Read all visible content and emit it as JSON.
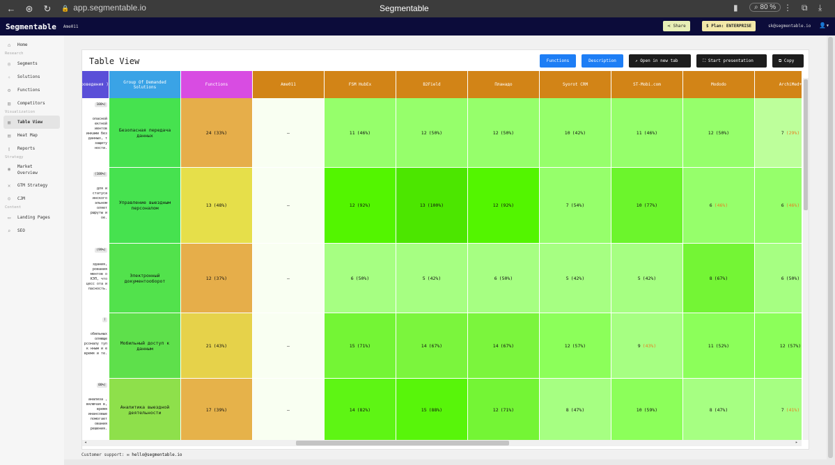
{
  "browser": {
    "url": "app.segmentable.io",
    "title": "Segmentable",
    "zoom": "80 %"
  },
  "header": {
    "brand": "Segmentable",
    "project": "Ame011",
    "share": "Share",
    "plan": "Plan: ENTERPRISE",
    "email": "sk@segmentable.io"
  },
  "sidebar": {
    "home": "Home",
    "sections": {
      "research": "Research",
      "visualization": "Visualization",
      "strategy": "Strategy",
      "content": "Content"
    },
    "research": [
      "Segments",
      "Solutions",
      "Functions",
      "Competitors"
    ],
    "visualization": [
      "Table View",
      "Heat Map",
      "Reports"
    ],
    "strategy": [
      "Market Overview",
      "GTM Strategy",
      "CJM"
    ],
    "content": [
      "Landing Pages",
      "SEO"
    ]
  },
  "card": {
    "title": "Table View",
    "buttons": {
      "functions": "Functions",
      "description": "Description",
      "open": "Open in new tab",
      "present": "Start presentation",
      "copy": "Copy"
    }
  },
  "table": {
    "headers": [
      "проведения )",
      "Group Of Demanded Solutions",
      "Functions",
      "Ame011",
      "FSM HubEx",
      "B2Field",
      "Планадо",
      "Syorot CRM",
      "ST-Mobi.com",
      "Mododo",
      "ArchiMed+"
    ],
    "header_colors": [
      "#5a4fd8",
      "#3aa3e6",
      "#d84ce2",
      "#d28417",
      "#d28417",
      "#d28417",
      "#d28417",
      "#d28417",
      "#d28417",
      "#d28417",
      "#d28417"
    ],
    "rows": [
      {
        "tag": "100%)",
        "desc": "опасной ектной иентов инками без данных, т защиту ности.",
        "group": "Безопасная передача данных",
        "functions": {
          "v": "24",
          "p": "(33%)"
        },
        "ame": "–",
        "cells": [
          {
            "v": "11",
            "p": "(46%)"
          },
          {
            "v": "12",
            "p": "(50%)"
          },
          {
            "v": "12",
            "p": "(50%)"
          },
          {
            "v": "10",
            "p": "(42%)"
          },
          {
            "v": "11",
            "p": "(46%)"
          },
          {
            "v": "12",
            "p": "(50%)"
          },
          {
            "v": "7",
            "p": "(29%)",
            "warn": true
          }
        ],
        "colors": [
          "#46e24f",
          "#e6ae4a",
          "#f9fff2",
          "#96ff6b",
          "#96ff6b",
          "#96ff6b",
          "#96ff6b",
          "#96ff6b",
          "#96ff6b",
          "#bdff9b"
        ]
      },
      {
        "tag": "(100%)",
        "desc": "для и статуса инского эльном оляет ршруты и ое.",
        "group": "Управление выездным персоналом",
        "functions": {
          "v": "13",
          "p": "(48%)"
        },
        "ame": "–",
        "cells": [
          {
            "v": "12",
            "p": "(92%)"
          },
          {
            "v": "13",
            "p": "(100%)"
          },
          {
            "v": "12",
            "p": "(92%)"
          },
          {
            "v": "7",
            "p": "(54%)"
          },
          {
            "v": "10",
            "p": "(77%)"
          },
          {
            "v": "6",
            "p": "(46%)",
            "warn": true
          },
          {
            "v": "6",
            "p": "(46%)",
            "warn": true
          }
        ],
        "colors": [
          "#46e24f",
          "#e6df4a",
          "#f9fff2",
          "#53f500",
          "#4ce600",
          "#53f500",
          "#96ff6b",
          "#6cf52c",
          "#96ff6b",
          "#96ff6b"
        ]
      },
      {
        "tag": "(99%)",
        "desc": "здания, рования ментов о КЭП, что цесс ота и пасность.",
        "group": "Электронный документооборот",
        "functions": {
          "v": "12",
          "p": "(37%)"
        },
        "ame": "–",
        "cells": [
          {
            "v": "6",
            "p": "(50%)"
          },
          {
            "v": "5",
            "p": "(42%)"
          },
          {
            "v": "6",
            "p": "(50%)"
          },
          {
            "v": "5",
            "p": "(42%)"
          },
          {
            "v": "5",
            "p": "(42%)"
          },
          {
            "v": "8",
            "p": "(67%)"
          },
          {
            "v": "6",
            "p": "(50%)"
          }
        ],
        "colors": [
          "#52e24c",
          "#e6ae4a",
          "#f9fff2",
          "#a6ff82",
          "#a6ff82",
          "#a6ff82",
          "#a6ff82",
          "#a6ff82",
          "#74f535",
          "#a6ff82"
        ]
      },
      {
        "tag": ")",
        "desc": "обильных оляюще рсоналу туп к нным и е время и те.",
        "group": "Мобильный доступ к данным",
        "functions": {
          "v": "21",
          "p": "(43%)"
        },
        "ame": "–",
        "cells": [
          {
            "v": "15",
            "p": "(71%)"
          },
          {
            "v": "14",
            "p": "(67%)"
          },
          {
            "v": "14",
            "p": "(67%)"
          },
          {
            "v": "12",
            "p": "(57%)"
          },
          {
            "v": "9",
            "p": "(43%)",
            "warn": true
          },
          {
            "v": "11",
            "p": "(52%)"
          },
          {
            "v": "12",
            "p": "(57%)"
          }
        ],
        "colors": [
          "#5ee04b",
          "#e6d24a",
          "#f9fff2",
          "#74f535",
          "#7bf53d",
          "#7bf53d",
          "#8cff5a",
          "#a6ff82",
          "#8cff5a",
          "#8cff5a"
        ]
      },
      {
        "tag": "00%)",
        "desc": "анализа , включая в, время инансовые помогает ования решения.",
        "group": "Аналитика выездной деятельности",
        "functions": {
          "v": "17",
          "p": "(39%)"
        },
        "ame": "–",
        "cells": [
          {
            "v": "14",
            "p": "(82%)"
          },
          {
            "v": "15",
            "p": "(88%)"
          },
          {
            "v": "12",
            "p": "(71%)"
          },
          {
            "v": "8",
            "p": "(47%)"
          },
          {
            "v": "10",
            "p": "(59%)"
          },
          {
            "v": "8",
            "p": "(47%)"
          },
          {
            "v": "7",
            "p": "(41%)",
            "warn": true
          }
        ],
        "colors": [
          "#8ee04b",
          "#e6b24a",
          "#f9fff2",
          "#5ef514",
          "#58f50a",
          "#74f535",
          "#a6ff82",
          "#8cff5a",
          "#a6ff82",
          "#a6ff82"
        ]
      }
    ]
  },
  "footer": {
    "label": "Customer support:",
    "email": "hello@segmentable.io"
  }
}
